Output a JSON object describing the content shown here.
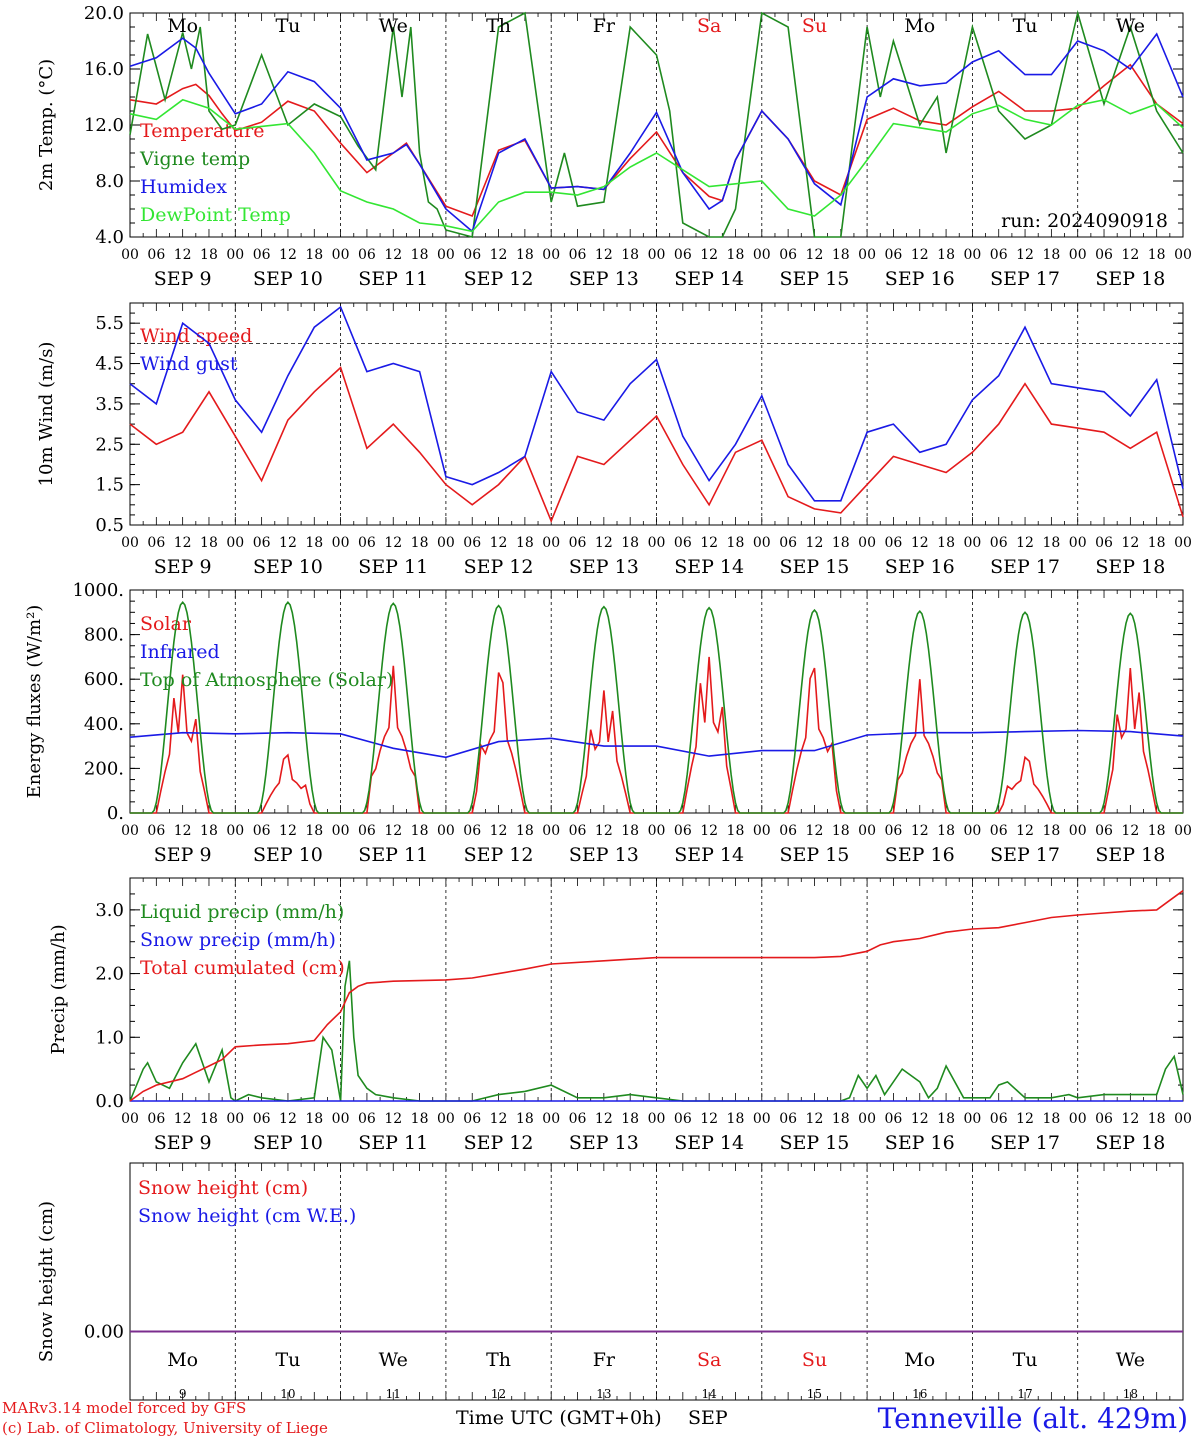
{
  "run_label": "run: 2024090918",
  "station_label": "Tenneville (alt. 429m)",
  "credits": [
    "MARv3.14 model forced by GFS",
    "(c) Lab. of Climatology, University of Liege"
  ],
  "time_axis": {
    "days": [
      "SEP  9",
      "SEP 10",
      "SEP 11",
      "SEP 12",
      "SEP 13",
      "SEP 14",
      "SEP 15",
      "SEP 16",
      "SEP 17",
      "SEP 18"
    ],
    "day_numbers": [
      "9",
      "10",
      "11",
      "12",
      "13",
      "14",
      "15",
      "16",
      "17",
      "18"
    ],
    "weekdays": [
      "Mo",
      "Tu",
      "We",
      "Th",
      "Fr",
      "Sa",
      "Su",
      "Mo",
      "Tu",
      "We"
    ],
    "weekend_flags": [
      false,
      false,
      false,
      false,
      false,
      true,
      true,
      false,
      false,
      false
    ],
    "hour_ticks": [
      "00",
      "06",
      "12",
      "18"
    ],
    "xlabel": "Time UTC (GMT+0h)",
    "month": "SEP"
  },
  "colors": {
    "red": "#e41a1c",
    "green": "#1f8a1f",
    "blue": "#1a1ae6",
    "lightgreen": "#33e633",
    "purple": "#7b2d8e",
    "black": "#000000"
  },
  "chart_data": [
    {
      "type": "line",
      "ylabel": "2m Temp. (°C)",
      "ylim": [
        4.0,
        20.0
      ],
      "yticks": [
        "4.0",
        "8.0",
        "12.0",
        "16.0",
        "20.0"
      ],
      "x_unit": "hours from Sep 9 00 UTC",
      "x_range": [
        0,
        240
      ],
      "series": [
        {
          "name": "Temperature",
          "color": "red",
          "x": [
            0,
            6,
            12,
            15,
            18,
            21,
            24,
            30,
            36,
            42,
            48,
            54,
            60,
            63,
            66,
            72,
            78,
            84,
            90,
            96,
            102,
            108,
            114,
            120,
            126,
            132,
            135,
            138,
            144,
            150,
            156,
            162,
            168,
            174,
            180,
            186,
            192,
            198,
            204,
            210,
            216,
            222,
            228,
            234,
            240
          ],
          "y": [
            13.8,
            13.5,
            14.6,
            14.9,
            14.1,
            12.8,
            11.6,
            12.2,
            13.7,
            13.0,
            10.7,
            8.6,
            10.0,
            10.7,
            9.2,
            6.2,
            5.5,
            10.2,
            10.9,
            7.5,
            7.6,
            7.4,
            9.6,
            11.5,
            8.6,
            6.9,
            6.6,
            9.5,
            13.0,
            11.0,
            8.0,
            7.0,
            12.4,
            13.2,
            12.3,
            12.0,
            13.3,
            14.4,
            13.0,
            13.0,
            13.2,
            14.8,
            16.3,
            13.5,
            12.1
          ]
        },
        {
          "name": "Vigne temp",
          "color": "green",
          "x": [
            0,
            4,
            8,
            12,
            14,
            16,
            18,
            21,
            24,
            30,
            36,
            42,
            48,
            52,
            56,
            60,
            62,
            64,
            66,
            68,
            70,
            72,
            78,
            84,
            90,
            96,
            99,
            102,
            108,
            114,
            120,
            123,
            126,
            132,
            135,
            138,
            144,
            150,
            156,
            162,
            168,
            171,
            174,
            180,
            184,
            186,
            192,
            198,
            204,
            210,
            216,
            222,
            228,
            234,
            240
          ],
          "y": [
            11.3,
            18.5,
            13.8,
            18.6,
            16.0,
            19.0,
            13.0,
            11.7,
            12.0,
            17.0,
            12.0,
            13.5,
            12.6,
            10.5,
            8.8,
            19.0,
            14.0,
            19.0,
            10.0,
            6.5,
            6.0,
            4.5,
            4.0,
            19.0,
            20.0,
            6.5,
            10.0,
            6.2,
            6.5,
            19.0,
            17.0,
            13.0,
            5.0,
            4.0,
            4.0,
            6.0,
            20.0,
            19.0,
            4.0,
            4.0,
            19.0,
            14.0,
            18.0,
            12.0,
            14.0,
            10.0,
            19.0,
            13.0,
            11.0,
            12.0,
            20.0,
            13.5,
            19.0,
            13.0,
            10.0
          ]
        },
        {
          "name": "Humidex",
          "color": "blue",
          "x": [
            0,
            6,
            12,
            15,
            18,
            24,
            30,
            36,
            42,
            48,
            54,
            60,
            63,
            66,
            72,
            78,
            84,
            90,
            96,
            102,
            108,
            114,
            120,
            126,
            132,
            135,
            138,
            144,
            150,
            156,
            162,
            168,
            174,
            180,
            186,
            192,
            198,
            204,
            210,
            216,
            222,
            228,
            234,
            240
          ],
          "y": [
            16.2,
            16.8,
            18.2,
            17.5,
            15.7,
            12.8,
            13.5,
            15.8,
            15.1,
            13.2,
            9.5,
            10.0,
            10.6,
            9.2,
            6.0,
            4.4,
            10.0,
            11.0,
            7.5,
            7.6,
            7.4,
            10.0,
            12.9,
            8.6,
            6.0,
            6.6,
            9.5,
            13.0,
            11.0,
            7.8,
            6.3,
            14.0,
            15.3,
            14.8,
            15.0,
            16.5,
            17.3,
            15.6,
            15.6,
            18.0,
            17.3,
            16.0,
            18.5,
            14.0
          ]
        },
        {
          "name": "DewPoint Temp",
          "color": "lightgreen",
          "x": [
            0,
            6,
            12,
            18,
            24,
            30,
            36,
            42,
            48,
            54,
            60,
            66,
            72,
            78,
            84,
            90,
            96,
            102,
            108,
            114,
            120,
            126,
            132,
            138,
            144,
            150,
            156,
            162,
            168,
            174,
            180,
            186,
            192,
            198,
            204,
            210,
            216,
            222,
            228,
            234,
            240
          ],
          "y": [
            12.8,
            12.4,
            13.8,
            13.2,
            11.7,
            11.9,
            12.1,
            10.0,
            7.3,
            6.5,
            6.0,
            5.0,
            4.8,
            4.4,
            6.5,
            7.2,
            7.2,
            7.0,
            7.6,
            9.0,
            10.0,
            8.8,
            7.6,
            7.8,
            8.0,
            6.0,
            5.5,
            7.0,
            9.5,
            12.1,
            11.8,
            11.5,
            12.8,
            13.4,
            12.4,
            12.0,
            13.4,
            13.8,
            12.8,
            13.5,
            11.8
          ]
        }
      ]
    },
    {
      "type": "line",
      "ylabel": "10m Wind (m/s)",
      "ylim": [
        0.5,
        6.0
      ],
      "yticks": [
        "0.5",
        "1.5",
        "2.5",
        "3.5",
        "4.5",
        "5.5"
      ],
      "reference_line": 5.0,
      "x_range": [
        0,
        240
      ],
      "series": [
        {
          "name": "Wind speed",
          "color": "red",
          "x": [
            0,
            6,
            12,
            18,
            24,
            30,
            36,
            42,
            48,
            54,
            60,
            66,
            72,
            78,
            84,
            90,
            96,
            102,
            108,
            114,
            120,
            126,
            132,
            138,
            144,
            150,
            156,
            162,
            168,
            174,
            180,
            186,
            192,
            198,
            204,
            210,
            216,
            222,
            228,
            234,
            240
          ],
          "y": [
            3.0,
            2.5,
            2.8,
            3.8,
            2.7,
            1.6,
            3.1,
            3.8,
            4.4,
            2.4,
            3.0,
            2.3,
            1.5,
            1.0,
            1.5,
            2.2,
            0.6,
            2.2,
            2.0,
            2.6,
            3.2,
            2.0,
            1.0,
            2.3,
            2.6,
            1.2,
            0.9,
            0.8,
            1.5,
            2.2,
            2.0,
            1.8,
            2.3,
            3.0,
            4.0,
            3.0,
            2.9,
            2.8,
            2.4,
            2.8,
            0.7
          ]
        },
        {
          "name": "Wind gust",
          "color": "blue",
          "x": [
            0,
            6,
            12,
            18,
            24,
            30,
            36,
            42,
            48,
            54,
            60,
            66,
            72,
            78,
            84,
            90,
            96,
            102,
            108,
            114,
            120,
            126,
            132,
            138,
            144,
            150,
            156,
            162,
            168,
            174,
            180,
            186,
            192,
            198,
            204,
            210,
            216,
            222,
            228,
            234,
            240
          ],
          "y": [
            4.0,
            3.5,
            5.5,
            5.0,
            3.6,
            2.8,
            4.2,
            5.4,
            5.9,
            4.3,
            4.5,
            4.3,
            1.7,
            1.5,
            1.8,
            2.2,
            4.3,
            3.3,
            3.1,
            4.0,
            4.6,
            2.7,
            1.6,
            2.5,
            3.7,
            2.0,
            1.1,
            1.1,
            2.8,
            3.0,
            2.3,
            2.5,
            3.6,
            4.2,
            5.4,
            4.0,
            3.9,
            3.8,
            3.2,
            4.1,
            1.4
          ]
        }
      ]
    },
    {
      "type": "line",
      "ylabel": "Energy fluxes (W/m²)",
      "ylim": [
        0,
        1000
      ],
      "yticks": [
        "0.",
        "200.",
        "400.",
        "600.",
        "800.",
        "1000."
      ],
      "x_range": [
        0,
        240
      ],
      "series": [
        {
          "name": "Solar",
          "color": "red",
          "day_peaks": [
            620,
            260,
            660,
            630,
            550,
            700,
            650,
            600,
            250,
            650
          ]
        },
        {
          "name": "Infrared",
          "color": "blue",
          "x": [
            0,
            12,
            24,
            36,
            48,
            60,
            72,
            84,
            96,
            108,
            120,
            132,
            144,
            156,
            168,
            180,
            192,
            204,
            216,
            228,
            240
          ],
          "y": [
            340,
            360,
            355,
            360,
            355,
            290,
            250,
            320,
            335,
            300,
            300,
            255,
            280,
            280,
            350,
            360,
            360,
            365,
            370,
            365,
            345
          ]
        },
        {
          "name": "Top of Atmosphere (Solar)",
          "color": "green",
          "day_peaks": [
            945,
            945,
            940,
            930,
            925,
            920,
            910,
            905,
            900,
            895
          ],
          "sunrise_h": 5,
          "sunset_h": 19
        }
      ]
    },
    {
      "type": "line",
      "ylabel": "Precip (mm/h)",
      "ylim": [
        0,
        3.5
      ],
      "yticks": [
        "0.0",
        "1.0",
        "2.0",
        "3.0"
      ],
      "x_range": [
        0,
        240
      ],
      "series": [
        {
          "name": "Liquid precip (mm/h)",
          "color": "green",
          "x": [
            0,
            3,
            4,
            6,
            9,
            12,
            15,
            18,
            21,
            23,
            24,
            27,
            30,
            36,
            42,
            44,
            46,
            48,
            49,
            50,
            51,
            52,
            54,
            56,
            60,
            66,
            72,
            78,
            84,
            90,
            96,
            102,
            108,
            114,
            120,
            126,
            132,
            144,
            156,
            162,
            164,
            166,
            168,
            170,
            172,
            176,
            180,
            182,
            184,
            186,
            190,
            192,
            196,
            198,
            200,
            204,
            210,
            214,
            216,
            222,
            228,
            234,
            236,
            238,
            240
          ],
          "y": [
            0,
            0.5,
            0.6,
            0.3,
            0.2,
            0.6,
            0.9,
            0.3,
            0.8,
            0.05,
            0,
            0.1,
            0.05,
            0,
            0.05,
            1.0,
            0.8,
            0,
            1.8,
            2.2,
            1.0,
            0.4,
            0.2,
            0.1,
            0.05,
            0,
            0,
            0,
            0.1,
            0.15,
            0.25,
            0.05,
            0.05,
            0.1,
            0.05,
            0,
            0,
            0,
            0,
            0,
            0.05,
            0.4,
            0.2,
            0.4,
            0.1,
            0.5,
            0.3,
            0.05,
            0.2,
            0.55,
            0.05,
            0.05,
            0.05,
            0.25,
            0.3,
            0.05,
            0.05,
            0.1,
            0.05,
            0.1,
            0.1,
            0.1,
            0.5,
            0.7,
            0.1
          ]
        },
        {
          "name": "Snow precip (mm/h)",
          "color": "blue",
          "x": [
            0,
            240
          ],
          "y": [
            0,
            0
          ]
        },
        {
          "name": "Total cumulated (cm)",
          "color": "red",
          "x": [
            0,
            3,
            6,
            12,
            15,
            18,
            21,
            24,
            30,
            36,
            42,
            45,
            48,
            50,
            52,
            54,
            60,
            72,
            78,
            84,
            90,
            96,
            108,
            120,
            132,
            144,
            156,
            162,
            168,
            171,
            174,
            180,
            186,
            192,
            198,
            204,
            210,
            216,
            222,
            228,
            234,
            237,
            240
          ],
          "y": [
            0,
            0.15,
            0.25,
            0.35,
            0.45,
            0.55,
            0.65,
            0.85,
            0.88,
            0.9,
            0.95,
            1.2,
            1.4,
            1.7,
            1.8,
            1.85,
            1.88,
            1.9,
            1.93,
            2.0,
            2.07,
            2.15,
            2.2,
            2.25,
            2.25,
            2.25,
            2.25,
            2.27,
            2.35,
            2.45,
            2.5,
            2.55,
            2.65,
            2.7,
            2.72,
            2.8,
            2.88,
            2.92,
            2.95,
            2.98,
            3.0,
            3.15,
            3.3
          ]
        }
      ]
    },
    {
      "type": "line",
      "ylabel": "Snow height (cm)",
      "yticks": [
        "0.00"
      ],
      "x_range": [
        0,
        240
      ],
      "series": [
        {
          "name": "Snow height (cm)",
          "color": "red",
          "x": [
            0,
            240
          ],
          "y": [
            0,
            0
          ]
        },
        {
          "name": "Snow height (cm W.E.)",
          "color": "blue",
          "x": [
            0,
            240
          ],
          "y": [
            0,
            0
          ]
        }
      ]
    }
  ]
}
